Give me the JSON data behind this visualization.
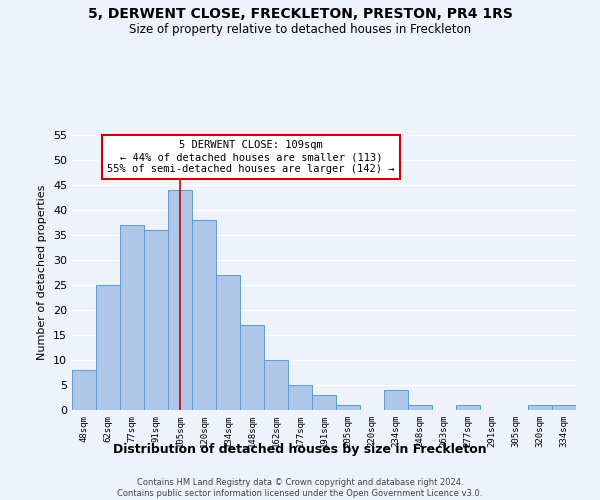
{
  "title": "5, DERWENT CLOSE, FRECKLETON, PRESTON, PR4 1RS",
  "subtitle": "Size of property relative to detached houses in Freckleton",
  "xlabel": "Distribution of detached houses by size in Freckleton",
  "ylabel": "Number of detached properties",
  "footer_line1": "Contains HM Land Registry data © Crown copyright and database right 2024.",
  "footer_line2": "Contains public sector information licensed under the Open Government Licence v3.0.",
  "bar_labels": [
    "48sqm",
    "62sqm",
    "77sqm",
    "91sqm",
    "105sqm",
    "120sqm",
    "134sqm",
    "148sqm",
    "162sqm",
    "177sqm",
    "191sqm",
    "205sqm",
    "220sqm",
    "234sqm",
    "248sqm",
    "263sqm",
    "277sqm",
    "291sqm",
    "305sqm",
    "320sqm",
    "334sqm"
  ],
  "bar_values": [
    8,
    25,
    37,
    36,
    44,
    38,
    27,
    17,
    10,
    5,
    3,
    1,
    0,
    4,
    1,
    0,
    1,
    0,
    0,
    1,
    1
  ],
  "bar_color": "#aec6e8",
  "bar_edge_color": "#5b9bd5",
  "ylim": [
    0,
    55
  ],
  "yticks": [
    0,
    5,
    10,
    15,
    20,
    25,
    30,
    35,
    40,
    45,
    50,
    55
  ],
  "vline_x": 4,
  "vline_color": "#cc0000",
  "annotation_title": "5 DERWENT CLOSE: 109sqm",
  "annotation_line1": "← 44% of detached houses are smaller (113)",
  "annotation_line2": "55% of semi-detached houses are larger (142) →",
  "annotation_box_color": "#ffffff",
  "annotation_box_edge": "#cc0000",
  "bg_color": "#eef2fb",
  "grid_color": "#ffffff"
}
